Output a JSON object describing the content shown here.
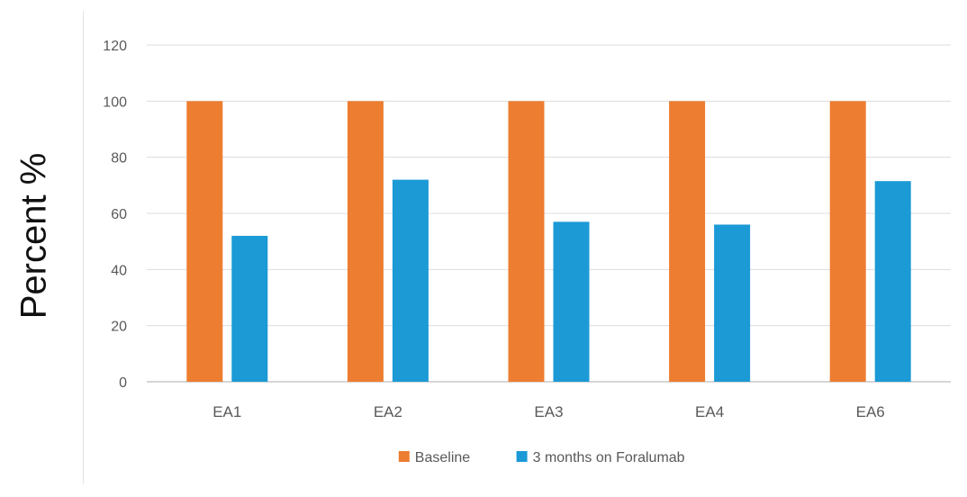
{
  "chart_data": {
    "type": "bar",
    "title": "",
    "xlabel": "",
    "ylabel": "Percent %",
    "ylim": [
      0,
      120
    ],
    "yticks": [
      0,
      20,
      40,
      60,
      80,
      100,
      120
    ],
    "grid": true,
    "legend_position": "bottom",
    "categories": [
      "EA1",
      "EA2",
      "EA3",
      "EA4",
      "EA6"
    ],
    "series": [
      {
        "name": "Baseline",
        "color": "#ED7D31",
        "values": [
          100,
          100,
          100,
          100,
          100
        ]
      },
      {
        "name": "3 months on Foralumab",
        "color": "#1B9AD6",
        "values": [
          52,
          72,
          57,
          56,
          71.5
        ]
      }
    ]
  }
}
